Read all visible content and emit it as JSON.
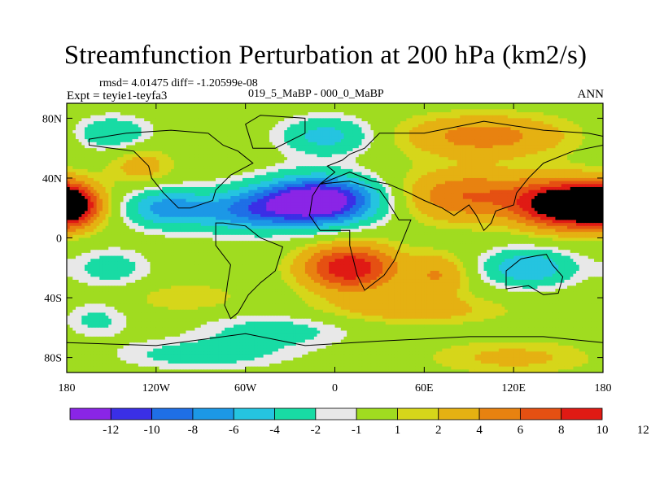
{
  "chart_data": {
    "type": "heatmap",
    "title": "Streamfunction Perturbation at 200 hPa (km2/s)",
    "stats": "rmsd= 4.01475 diff= -1.20599e-08",
    "experiment": "Expt = teyie1-teyfa3",
    "experiments_diff": "019_5_MaBP - 000_0_MaBP",
    "season": "ANN",
    "xlim": [
      -180,
      180
    ],
    "ylim": [
      -90,
      90
    ],
    "x_ticks": [
      {
        "value": -180,
        "label": "180"
      },
      {
        "value": -120,
        "label": "120W"
      },
      {
        "value": -60,
        "label": "60W"
      },
      {
        "value": 0,
        "label": "0"
      },
      {
        "value": 60,
        "label": "60E"
      },
      {
        "value": 120,
        "label": "120E"
      },
      {
        "value": 180,
        "label": "180"
      }
    ],
    "y_ticks": [
      {
        "value": 80,
        "label": "80N"
      },
      {
        "value": 40,
        "label": "40N"
      },
      {
        "value": 0,
        "label": "0"
      },
      {
        "value": -40,
        "label": "40S"
      },
      {
        "value": -80,
        "label": "80S"
      }
    ],
    "colorbar": {
      "colors": [
        "#8a25e6",
        "#3a2fe6",
        "#1f6fe6",
        "#1c98e6",
        "#25c4e0",
        "#18dba4",
        "#e8e8e8",
        "#a0dc20",
        "#d6d61a",
        "#e5b112",
        "#e88210",
        "#e55012",
        "#e01a14"
      ],
      "labels": [
        "-12",
        "-10",
        "-8",
        "-6",
        "-4",
        "-2",
        "-1",
        "1",
        "2",
        "4",
        "6",
        "8",
        "10",
        "12"
      ]
    },
    "field_centers": [
      {
        "lon": -10,
        "lat": 25,
        "amp": -15,
        "sx": 28,
        "sy": 11
      },
      {
        "lon": -60,
        "lat": 18,
        "amp": -7,
        "sx": 30,
        "sy": 10
      },
      {
        "lon": -115,
        "lat": 20,
        "amp": -6,
        "sx": 18,
        "sy": 9
      },
      {
        "lon": -178,
        "lat": 22,
        "amp": 11,
        "sx": 14,
        "sy": 10
      },
      {
        "lon": 155,
        "lat": 22,
        "amp": 13,
        "sx": 22,
        "sy": 11
      },
      {
        "lon": 90,
        "lat": 28,
        "amp": 6,
        "sx": 35,
        "sy": 12
      },
      {
        "lon": 10,
        "lat": -20,
        "amp": 10,
        "sx": 22,
        "sy": 11
      },
      {
        "lon": 100,
        "lat": 68,
        "amp": 5,
        "sx": 40,
        "sy": 10
      },
      {
        "lon": -5,
        "lat": 68,
        "amp": -5,
        "sx": 22,
        "sy": 9
      },
      {
        "lon": -150,
        "lat": 70,
        "amp": -4,
        "sx": 18,
        "sy": 8
      },
      {
        "lon": -130,
        "lat": 48,
        "amp": 3,
        "sx": 15,
        "sy": 9
      },
      {
        "lon": 130,
        "lat": -20,
        "amp": -6,
        "sx": 22,
        "sy": 9
      },
      {
        "lon": 70,
        "lat": -25,
        "amp": 4,
        "sx": 15,
        "sy": 10
      },
      {
        "lon": -150,
        "lat": -20,
        "amp": -3,
        "sx": 18,
        "sy": 9
      },
      {
        "lon": 50,
        "lat": -48,
        "amp": 3,
        "sx": 45,
        "sy": 7
      },
      {
        "lon": -100,
        "lat": -40,
        "amp": 2,
        "sx": 25,
        "sy": 7
      },
      {
        "lon": -40,
        "lat": -62,
        "amp": -3,
        "sx": 35,
        "sy": 8
      },
      {
        "lon": -160,
        "lat": -55,
        "amp": -2.5,
        "sx": 15,
        "sy": 8
      },
      {
        "lon": 120,
        "lat": -80,
        "amp": 2.5,
        "sx": 40,
        "sy": 8
      },
      {
        "lon": -90,
        "lat": -78,
        "amp": -3,
        "sx": 40,
        "sy": 7
      }
    ]
  }
}
